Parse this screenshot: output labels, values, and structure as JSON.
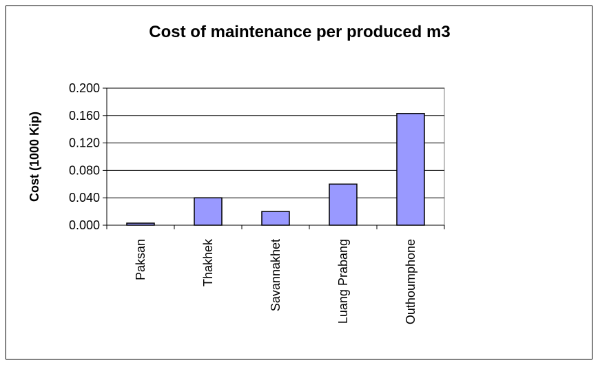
{
  "chart_data": {
    "type": "bar",
    "title": "Cost of maintenance per produced m3",
    "xlabel": "",
    "ylabel": "Cost (1000 Kip)",
    "categories": [
      "Paksan",
      "Thakhek",
      "Savannakhet",
      "Luang Prabang",
      "Outhoumphone"
    ],
    "values": [
      0.003,
      0.04,
      0.02,
      0.06,
      0.163
    ],
    "ylim": [
      0,
      0.2
    ],
    "yticks": [
      "0.000",
      "0.040",
      "0.080",
      "0.120",
      "0.160",
      "0.200"
    ],
    "grid": true,
    "legend": "none",
    "colors": {
      "bar": "#9999ff",
      "bar_edge": "#000000",
      "grid": "#000000"
    }
  }
}
